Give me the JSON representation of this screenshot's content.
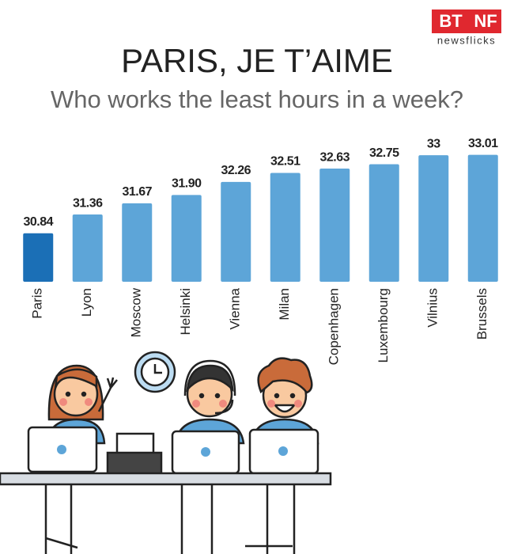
{
  "chart_data": {
    "type": "bar",
    "title": "PARIS, JE T’AIME",
    "subtitle": "Who works the least hours in a week?",
    "logo": {
      "main": "BT",
      "accent": "NF",
      "sub": "newsflicks"
    },
    "categories": [
      "Paris",
      "Lyon",
      "Moscow",
      "Helsinki",
      "Vienna",
      "Milan",
      "Copenhagen",
      "Luxembourg",
      "Vilnius",
      "Brussels"
    ],
    "values": [
      30.84,
      31.36,
      31.67,
      31.9,
      32.26,
      32.51,
      32.63,
      32.75,
      33,
      33.01
    ],
    "value_labels": [
      "30.84",
      "31.36",
      "31.67",
      "31.90",
      "32.26",
      "32.51",
      "32.63",
      "32.75",
      "33",
      "33.01"
    ],
    "colors": [
      "#1b6fb6",
      "#5da5d8",
      "#5da5d8",
      "#5da5d8",
      "#5da5d8",
      "#5da5d8",
      "#5da5d8",
      "#5da5d8",
      "#5da5d8",
      "#5da5d8"
    ],
    "ylim": [
      29.5,
      33.2
    ]
  }
}
